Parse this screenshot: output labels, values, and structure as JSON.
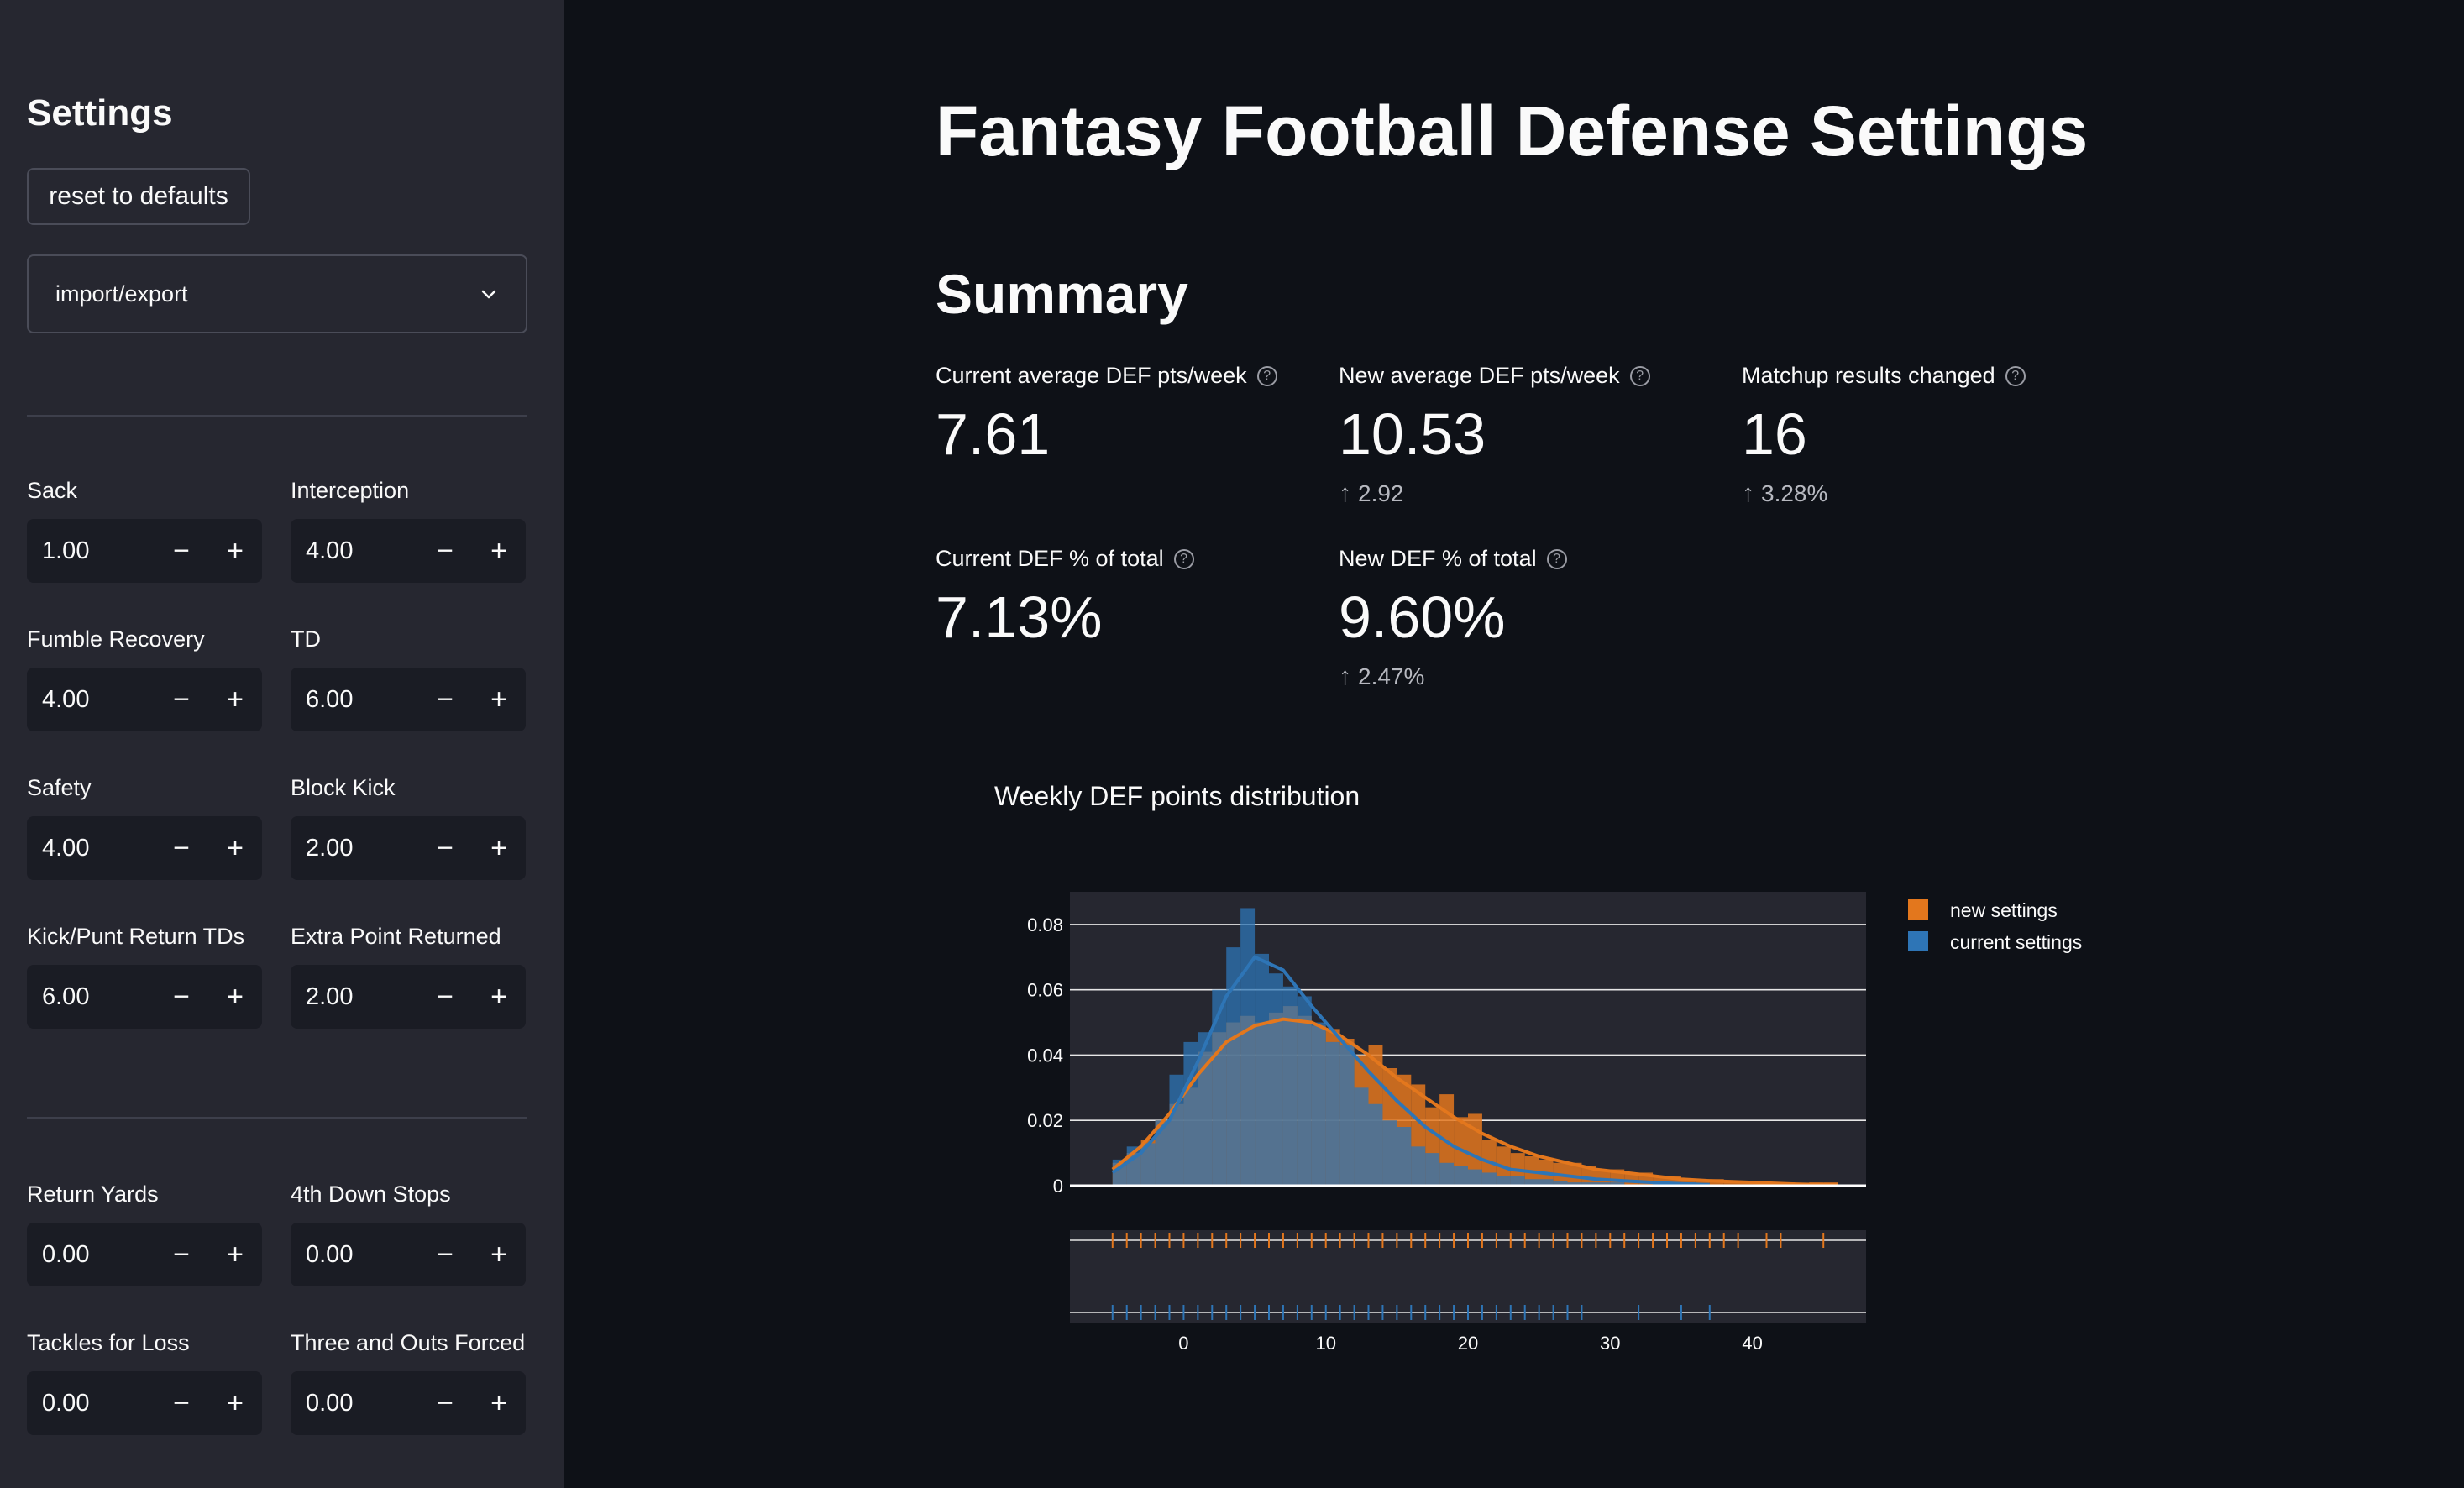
{
  "sidebar": {
    "title": "Settings",
    "reset_label": "reset to defaults",
    "expander_label": "import/export",
    "fields_group1": [
      {
        "label": "Sack",
        "value": "1.00"
      },
      {
        "label": "Interception",
        "value": "4.00"
      },
      {
        "label": "Fumble Recovery",
        "value": "4.00"
      },
      {
        "label": "TD",
        "value": "6.00"
      },
      {
        "label": "Safety",
        "value": "4.00"
      },
      {
        "label": "Block Kick",
        "value": "2.00"
      },
      {
        "label": "Kick/Punt Return TDs",
        "value": "6.00"
      },
      {
        "label": "Extra Point Returned",
        "value": "2.00"
      }
    ],
    "fields_group2": [
      {
        "label": "Return Yards",
        "value": "0.00"
      },
      {
        "label": "4th Down Stops",
        "value": "0.00"
      },
      {
        "label": "Tackles for Loss",
        "value": "0.00"
      },
      {
        "label": "Three and Outs Forced",
        "value": "0.00"
      }
    ],
    "minus": "−",
    "plus": "+"
  },
  "main": {
    "title": "Fantasy Football Defense Settings",
    "summary_title": "Summary",
    "help_glyph": "?",
    "up_arrow": "↑",
    "metrics": [
      {
        "label": "Current average DEF pts/week",
        "value": "7.61",
        "delta": ""
      },
      {
        "label": "New average DEF pts/week",
        "value": "10.53",
        "delta": "2.92"
      },
      {
        "label": "Matchup results changed",
        "value": "16",
        "delta": "3.28%"
      },
      {
        "label": "Current DEF % of total",
        "value": "7.13%",
        "delta": ""
      },
      {
        "label": "New DEF % of total",
        "value": "9.60%",
        "delta": "2.47%"
      }
    ]
  },
  "chart_data": {
    "type": "histogram",
    "title": "Weekly DEF points distribution",
    "xlabel": "",
    "ylabel": "",
    "xlim": [
      -8,
      48
    ],
    "ylim": [
      0,
      0.09
    ],
    "yticks": [
      0,
      0.02,
      0.04,
      0.06,
      0.08
    ],
    "ytick_labels": [
      "0",
      "0.02",
      "0.04",
      "0.06",
      "0.08"
    ],
    "xticks": [
      0,
      10,
      20,
      30,
      40
    ],
    "bin_edges": [
      -5,
      -4,
      -3,
      -2,
      -1,
      0,
      1,
      2,
      3,
      4,
      5,
      6,
      7,
      8,
      9,
      10,
      11,
      12,
      13,
      14,
      15,
      16,
      17,
      18,
      19,
      20,
      21,
      22,
      23,
      24,
      25,
      26,
      27,
      28,
      29,
      30,
      31,
      32,
      33,
      34,
      35,
      36,
      37,
      38,
      39,
      40,
      41,
      42,
      43,
      44,
      45,
      46
    ],
    "series": [
      {
        "name": "new settings",
        "color": "#e3771d",
        "values": [
          0.007,
          0.01,
          0.014,
          0.02,
          0.025,
          0.03,
          0.041,
          0.047,
          0.05,
          0.052,
          0.05,
          0.053,
          0.055,
          0.052,
          0.049,
          0.048,
          0.045,
          0.04,
          0.043,
          0.036,
          0.034,
          0.031,
          0.024,
          0.028,
          0.021,
          0.022,
          0.014,
          0.012,
          0.01,
          0.009,
          0.008,
          0.007,
          0.007,
          0.006,
          0.005,
          0.005,
          0.004,
          0.004,
          0.003,
          0.003,
          0.002,
          0.002,
          0.002,
          0.001,
          0.001,
          0.001,
          0.001,
          0.001,
          0.0,
          0.001,
          0.001
        ],
        "kde": [
          [
            -5,
            0.005
          ],
          [
            -3,
            0.012
          ],
          [
            -1,
            0.022
          ],
          [
            1,
            0.034
          ],
          [
            3,
            0.044
          ],
          [
            5,
            0.049
          ],
          [
            7,
            0.051
          ],
          [
            9,
            0.05
          ],
          [
            11,
            0.046
          ],
          [
            13,
            0.04
          ],
          [
            15,
            0.033
          ],
          [
            17,
            0.027
          ],
          [
            19,
            0.021
          ],
          [
            21,
            0.016
          ],
          [
            23,
            0.012
          ],
          [
            25,
            0.009
          ],
          [
            27,
            0.007
          ],
          [
            29,
            0.005
          ],
          [
            31,
            0.004
          ],
          [
            33,
            0.003
          ],
          [
            35,
            0.002
          ],
          [
            37,
            0.0015
          ],
          [
            40,
            0.001
          ],
          [
            43,
            0.0005
          ],
          [
            46,
            0.0002
          ]
        ],
        "rug": [
          -5,
          -4,
          -3,
          -2,
          -1,
          0,
          1,
          2,
          3,
          4,
          5,
          6,
          7,
          8,
          9,
          10,
          11,
          12,
          13,
          14,
          15,
          16,
          17,
          18,
          19,
          20,
          21,
          22,
          23,
          24,
          25,
          26,
          27,
          28,
          29,
          30,
          31,
          32,
          33,
          34,
          35,
          36,
          37,
          38,
          39,
          41,
          42,
          45
        ]
      },
      {
        "name": "current settings",
        "color": "#2e75b6",
        "values": [
          0.008,
          0.012,
          0.013,
          0.02,
          0.034,
          0.044,
          0.047,
          0.06,
          0.073,
          0.085,
          0.071,
          0.065,
          0.061,
          0.058,
          0.05,
          0.044,
          0.043,
          0.03,
          0.025,
          0.02,
          0.018,
          0.012,
          0.01,
          0.007,
          0.006,
          0.005,
          0.004,
          0.003,
          0.003,
          0.002,
          0.002,
          0.0015,
          0.001,
          0.001,
          0.001,
          0.001,
          0.0,
          0.0,
          0.001,
          0.0,
          0.001,
          0.0
        ],
        "kde": [
          [
            -5,
            0.004
          ],
          [
            -3,
            0.01
          ],
          [
            -1,
            0.02
          ],
          [
            1,
            0.038
          ],
          [
            3,
            0.058
          ],
          [
            5,
            0.07
          ],
          [
            7,
            0.066
          ],
          [
            9,
            0.055
          ],
          [
            11,
            0.045
          ],
          [
            13,
            0.035
          ],
          [
            15,
            0.026
          ],
          [
            17,
            0.018
          ],
          [
            19,
            0.012
          ],
          [
            21,
            0.008
          ],
          [
            23,
            0.005
          ],
          [
            25,
            0.004
          ],
          [
            27,
            0.003
          ],
          [
            29,
            0.002
          ],
          [
            31,
            0.0015
          ],
          [
            33,
            0.001
          ],
          [
            35,
            0.0006
          ],
          [
            37,
            0.0003
          ]
        ],
        "rug": [
          -5,
          -4,
          -3,
          -2,
          -1,
          0,
          1,
          2,
          3,
          4,
          5,
          6,
          7,
          8,
          9,
          10,
          11,
          12,
          13,
          14,
          15,
          16,
          17,
          18,
          19,
          20,
          21,
          22,
          23,
          24,
          25,
          26,
          27,
          28,
          32,
          35,
          37
        ]
      }
    ]
  }
}
